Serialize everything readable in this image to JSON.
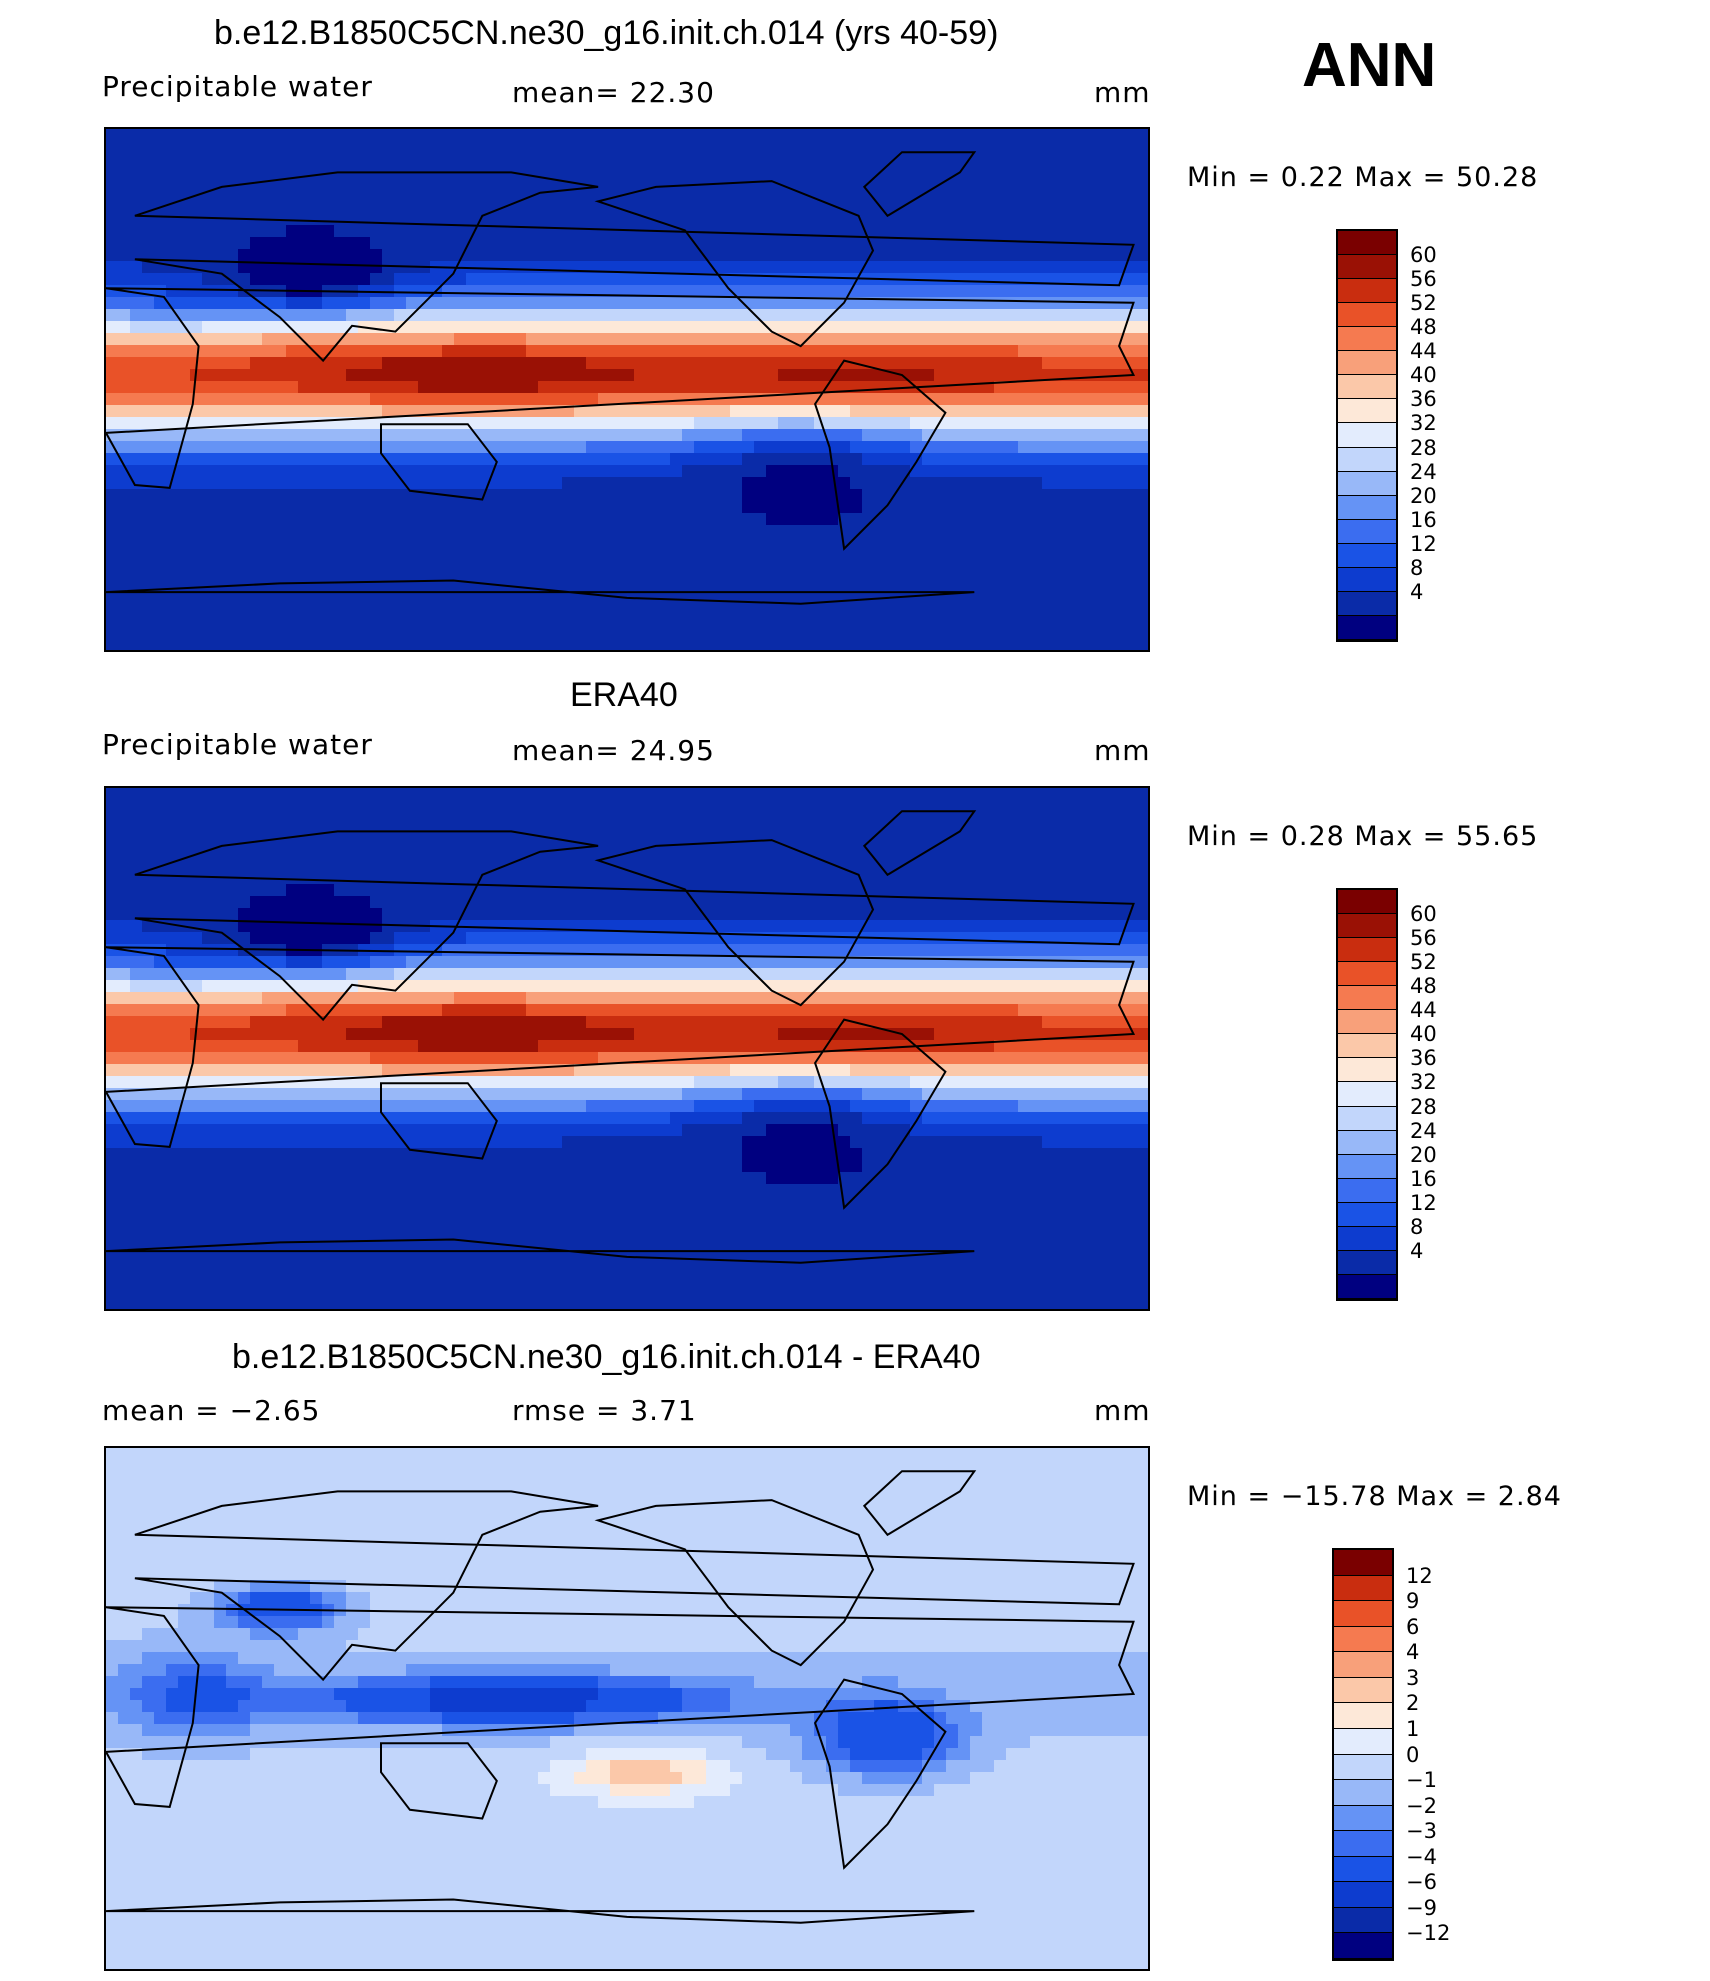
{
  "season": "ANN",
  "colors": {
    "pw": [
      "#000080",
      "#0a2ba8",
      "#0d3ccf",
      "#1a53e6",
      "#3b6df0",
      "#6593f5",
      "#98b8f8",
      "#c2d6fb",
      "#e3ecfd",
      "#fde8d8",
      "#fbc8a9",
      "#f8a07a",
      "#f57a50",
      "#e95228",
      "#c92d0f",
      "#9a1105",
      "#7a0000"
    ],
    "diff": [
      "#000080",
      "#0a2ba8",
      "#0d3ccf",
      "#1a53e6",
      "#3b6df0",
      "#6593f5",
      "#98b8f8",
      "#c2d6fb",
      "#e3ecfd",
      "#fde8d8",
      "#fbc8a9",
      "#f8a07a",
      "#f57a50",
      "#e95228",
      "#c92d0f",
      "#7a0000"
    ]
  },
  "panels": [
    {
      "id": "model",
      "title": "b.e12.B1850C5CN.ne30_g16.init.ch.014 (yrs 40-59)",
      "left": "Precipitable  water",
      "center": "mean=   22.30",
      "right": "mm",
      "minmax": "Min  =     0.22  Max  =    50.28",
      "min": 0.22,
      "max": 50.28,
      "levels": [
        "60",
        "56",
        "52",
        "48",
        "44",
        "40",
        "36",
        "32",
        "28",
        "24",
        "20",
        "16",
        "12",
        "8",
        "4"
      ]
    },
    {
      "id": "obs",
      "title": "ERA40",
      "left": "Precipitable  water",
      "center": "mean=   24.95",
      "right": "mm",
      "minmax": "Min  =     0.28  Max  =    55.65",
      "min": 0.28,
      "max": 55.65,
      "levels": [
        "60",
        "56",
        "52",
        "48",
        "44",
        "40",
        "36",
        "32",
        "28",
        "24",
        "20",
        "16",
        "12",
        "8",
        "4"
      ]
    },
    {
      "id": "diff",
      "title": "b.e12.B1850C5CN.ne30_g16.init.ch.014 - ERA40",
      "left": "mean  =    −2.65",
      "center": "rmse  =     3.71",
      "right": "mm",
      "minmax": "Min  =  −15.78  Max  =     2.84",
      "min": -15.78,
      "max": 2.84,
      "levels": [
        "12",
        "9",
        "6",
        "4",
        "3",
        "2",
        "1",
        "0",
        "−1",
        "−2",
        "−3",
        "−4",
        "−6",
        "−9",
        "−12"
      ]
    }
  ]
}
